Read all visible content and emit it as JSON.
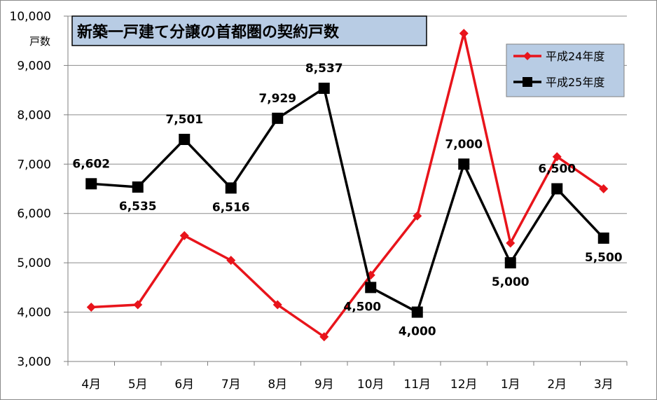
{
  "chart_data": {
    "type": "line",
    "title": "新築一戸建て分譲の首都圏の契約戸数",
    "ylabel": "戸数",
    "xlabel": "",
    "categories": [
      "4月",
      "5月",
      "6月",
      "7月",
      "8月",
      "9月",
      "10月",
      "11月",
      "12月",
      "1月",
      "2月",
      "3月"
    ],
    "ylim": [
      3000,
      10000
    ],
    "yticks": [
      3000,
      4000,
      5000,
      6000,
      7000,
      8000,
      9000,
      10000
    ],
    "ytick_labels": [
      "3,000",
      "4,000",
      "5,000",
      "6,000",
      "7,000",
      "8,000",
      "9,000",
      "10,000"
    ],
    "grid": true,
    "legend_position": "top-right",
    "series": [
      {
        "name": "平成24年度",
        "color": "#e8141b",
        "marker": "diamond",
        "values": [
          4100,
          4150,
          5550,
          5050,
          4150,
          3500,
          4750,
          5950,
          9650,
          5400,
          7150,
          6500
        ],
        "labels": []
      },
      {
        "name": "平成25年度",
        "color": "#000000",
        "marker": "square",
        "values": [
          6602,
          6535,
          7501,
          6516,
          7929,
          8537,
          4500,
          4000,
          7000,
          5000,
          6500,
          5500
        ],
        "labels": [
          "6,602",
          "6,535",
          "7,501",
          "6,516",
          "7,929",
          "8,537",
          "4,500",
          "4,000",
          "7,000",
          "5,000",
          "6,500",
          "5,500"
        ]
      }
    ]
  }
}
